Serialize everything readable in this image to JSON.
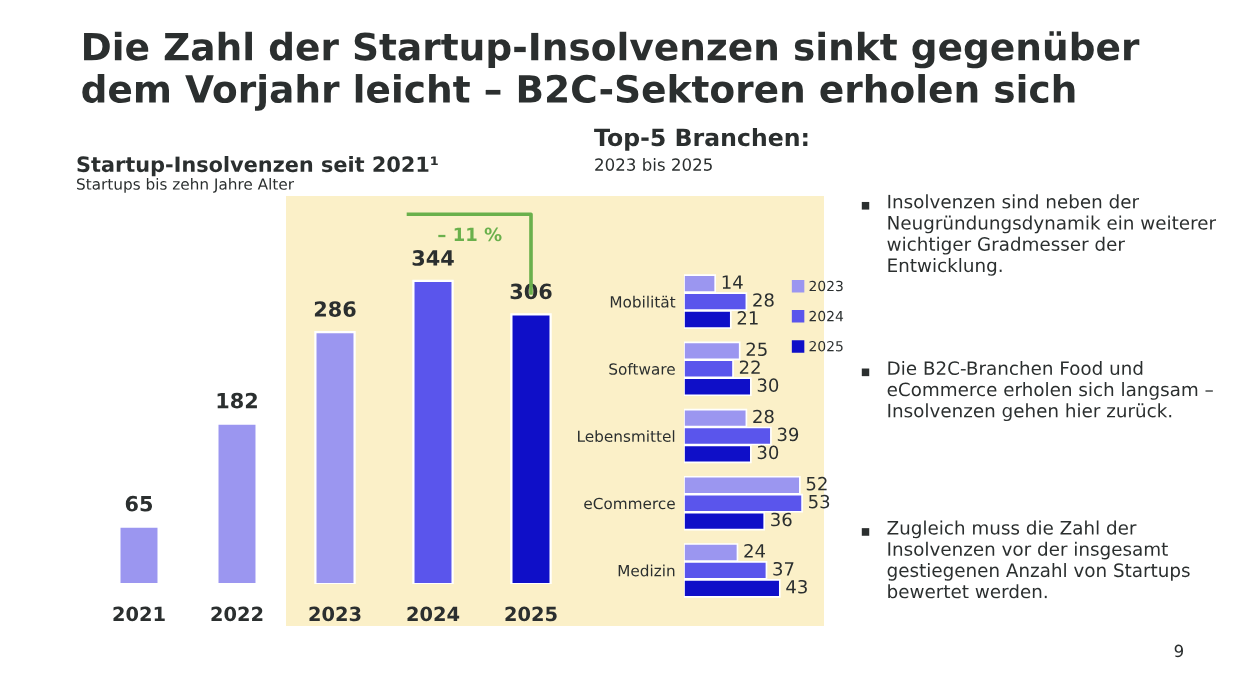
{
  "chart_data": [
    {
      "type": "other",
      "title": "Die Zahl der Startup-Insolvenzen sinkt gegenüber dem Vorjahr leicht – B2C-Sektoren erholen sich",
      "annotations": [
        "Insolvenzen sind neben der Neugründungsdynamik ein weiterer wichtiger Gradmesser der Entwicklung.",
        "Die B2C-Branchen Food und eCommerce erholen sich langsam – Insolvenzen gehen hier zurück.",
        "Zugleich muss die Zahl der Insolvenzen vor der insgesamt gestiegenen Anzahl von Startups bewertet werden.",
        "9"
      ]
    },
    {
      "type": "bar",
      "title": "Startup-Insolvenzen seit 2021¹",
      "subtitle": "Startups bis zehn Jahre Alter",
      "categories": [
        "2021",
        "2022",
        "2023",
        "2024",
        "2025"
      ],
      "values": [
        65,
        182,
        286,
        344,
        306
      ],
      "colors": [
        "#9b96f0",
        "#9b96f0",
        "#9b96f0",
        "#5a55ec",
        "#0f0fc8"
      ],
      "data_labels": true,
      "bands": [
        {
          "axis": "x",
          "from": "2023",
          "to": "2025",
          "color": "#fbf0c8"
        }
      ],
      "annotations": [
        "– 11 %"
      ]
    },
    {
      "type": "bar",
      "orientation": "horizontal",
      "title": "Top-5 Branchen:",
      "subtitle": "2023 bis 2025",
      "categories": [
        "Mobilität",
        "Software",
        "Lebensmittel",
        "eCommerce",
        "Medizin"
      ],
      "series": [
        {
          "name": "2023",
          "color": "#9b96f0",
          "values": [
            14,
            25,
            28,
            52,
            24
          ]
        },
        {
          "name": "2024",
          "color": "#5a55ec",
          "values": [
            28,
            22,
            39,
            53,
            37
          ]
        },
        {
          "name": "2025",
          "color": "#0f0fc8",
          "values": [
            21,
            30,
            30,
            36,
            43
          ]
        }
      ],
      "data_labels": true,
      "legend": "top right"
    }
  ]
}
